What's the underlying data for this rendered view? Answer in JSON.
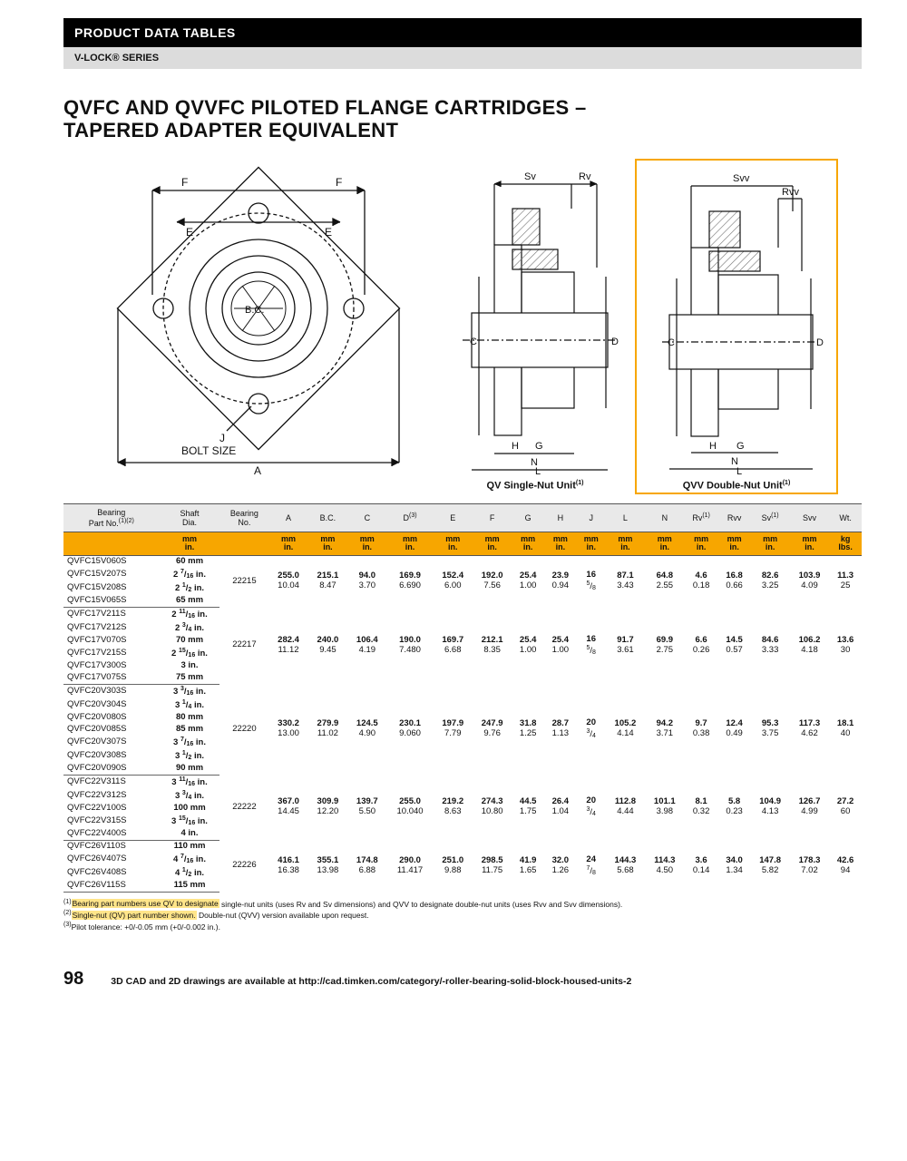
{
  "header": {
    "black": "PRODUCT DATA TABLES",
    "grey": "V-LOCK® SERIES"
  },
  "title_line1": "QVFC AND QVVFC PILOTED FLANGE CARTRIDGES –",
  "title_line2": "TAPERED ADAPTER EQUIVALENT",
  "diagrams": {
    "flange": {
      "labels": [
        "F",
        "F",
        "E",
        "E",
        "B.C.",
        "J",
        "BOLT SIZE",
        "A"
      ]
    },
    "qv": {
      "labels": [
        "Sv",
        "Rv",
        "C",
        "D",
        "H",
        "G",
        "N",
        "L"
      ],
      "caption": "QV Single-Nut Unit",
      "sup": "(1)"
    },
    "qvv": {
      "labels": [
        "Svv",
        "Rvv",
        "C",
        "D",
        "H",
        "G",
        "N",
        "L"
      ],
      "caption": "QVV Double-Nut Unit",
      "sup": "(1)"
    }
  },
  "columns": [
    "Bearing Part No.",
    "Shaft Dia.",
    "Bearing No.",
    "A",
    "B.C.",
    "C",
    "D",
    "E",
    "F",
    "G",
    "H",
    "J",
    "L",
    "N",
    "Rv",
    "Rvv",
    "Sv",
    "Svv",
    "Wt."
  ],
  "col_sup": {
    "0": "(1)(2)",
    "6": "(3)",
    "14": "(1)",
    "16": "(1)"
  },
  "unit_row": {
    "first_blank": 1,
    "mm": "mm",
    "in": "in.",
    "wt_kg": "kg",
    "wt_lb": "lbs."
  },
  "groups": [
    {
      "bearing_no": "22215",
      "parts": [
        {
          "pn": "QVFC15V060S",
          "shaft": "60 mm"
        },
        {
          "pn": "QVFC15V207S",
          "shaft": "2 7/16 in."
        },
        {
          "pn": "QVFC15V208S",
          "shaft": "2 1/2 in."
        },
        {
          "pn": "QVFC15V065S",
          "shaft": "65 mm"
        }
      ],
      "vals": {
        "A": [
          "255.0",
          "10.04"
        ],
        "BC": [
          "215.1",
          "8.47"
        ],
        "C": [
          "94.0",
          "3.70"
        ],
        "D": [
          "169.9",
          "6.690"
        ],
        "E": [
          "152.4",
          "6.00"
        ],
        "F": [
          "192.0",
          "7.56"
        ],
        "G": [
          "25.4",
          "1.00"
        ],
        "H": [
          "23.9",
          "0.94"
        ],
        "J": [
          "16",
          "5/8"
        ],
        "L": [
          "87.1",
          "3.43"
        ],
        "N": [
          "64.8",
          "2.55"
        ],
        "Rv": [
          "4.6",
          "0.18"
        ],
        "Rvv": [
          "16.8",
          "0.66"
        ],
        "Sv": [
          "82.6",
          "3.25"
        ],
        "Svv": [
          "103.9",
          "4.09"
        ],
        "Wt": [
          "11.3",
          "25"
        ]
      }
    },
    {
      "bearing_no": "22217",
      "parts": [
        {
          "pn": "QVFC17V211S",
          "shaft": "2 11/16 in."
        },
        {
          "pn": "QVFC17V212S",
          "shaft": "2 3/4 in."
        },
        {
          "pn": "QVFC17V070S",
          "shaft": "70 mm"
        },
        {
          "pn": "QVFC17V215S",
          "shaft": "2 15/16 in."
        },
        {
          "pn": "QVFC17V300S",
          "shaft": "3 in."
        },
        {
          "pn": "QVFC17V075S",
          "shaft": "75 mm"
        }
      ],
      "vals": {
        "A": [
          "282.4",
          "11.12"
        ],
        "BC": [
          "240.0",
          "9.45"
        ],
        "C": [
          "106.4",
          "4.19"
        ],
        "D": [
          "190.0",
          "7.480"
        ],
        "E": [
          "169.7",
          "6.68"
        ],
        "F": [
          "212.1",
          "8.35"
        ],
        "G": [
          "25.4",
          "1.00"
        ],
        "H": [
          "25.4",
          "1.00"
        ],
        "J": [
          "16",
          "5/8"
        ],
        "L": [
          "91.7",
          "3.61"
        ],
        "N": [
          "69.9",
          "2.75"
        ],
        "Rv": [
          "6.6",
          "0.26"
        ],
        "Rvv": [
          "14.5",
          "0.57"
        ],
        "Sv": [
          "84.6",
          "3.33"
        ],
        "Svv": [
          "106.2",
          "4.18"
        ],
        "Wt": [
          "13.6",
          "30"
        ]
      }
    },
    {
      "bearing_no": "22220",
      "parts": [
        {
          "pn": "QVFC20V303S",
          "shaft": "3 3/16 in."
        },
        {
          "pn": "QVFC20V304S",
          "shaft": "3 1/4 in."
        },
        {
          "pn": "QVFC20V080S",
          "shaft": "80 mm"
        },
        {
          "pn": "QVFC20V085S",
          "shaft": "85 mm"
        },
        {
          "pn": "QVFC20V307S",
          "shaft": "3 7/16 in."
        },
        {
          "pn": "QVFC20V308S",
          "shaft": "3 1/2 in."
        },
        {
          "pn": "QVFC20V090S",
          "shaft": "90 mm"
        }
      ],
      "vals": {
        "A": [
          "330.2",
          "13.00"
        ],
        "BC": [
          "279.9",
          "11.02"
        ],
        "C": [
          "124.5",
          "4.90"
        ],
        "D": [
          "230.1",
          "9.060"
        ],
        "E": [
          "197.9",
          "7.79"
        ],
        "F": [
          "247.9",
          "9.76"
        ],
        "G": [
          "31.8",
          "1.25"
        ],
        "H": [
          "28.7",
          "1.13"
        ],
        "J": [
          "20",
          "3/4"
        ],
        "L": [
          "105.2",
          "4.14"
        ],
        "N": [
          "94.2",
          "3.71"
        ],
        "Rv": [
          "9.7",
          "0.38"
        ],
        "Rvv": [
          "12.4",
          "0.49"
        ],
        "Sv": [
          "95.3",
          "3.75"
        ],
        "Svv": [
          "117.3",
          "4.62"
        ],
        "Wt": [
          "18.1",
          "40"
        ]
      }
    },
    {
      "bearing_no": "22222",
      "parts": [
        {
          "pn": "QVFC22V311S",
          "shaft": "3 11/16 in."
        },
        {
          "pn": "QVFC22V312S",
          "shaft": "3 3/4 in."
        },
        {
          "pn": "QVFC22V100S",
          "shaft": "100 mm"
        },
        {
          "pn": "QVFC22V315S",
          "shaft": "3 15/16 in."
        },
        {
          "pn": "QVFC22V400S",
          "shaft": "4 in."
        }
      ],
      "vals": {
        "A": [
          "367.0",
          "14.45"
        ],
        "BC": [
          "309.9",
          "12.20"
        ],
        "C": [
          "139.7",
          "5.50"
        ],
        "D": [
          "255.0",
          "10.040"
        ],
        "E": [
          "219.2",
          "8.63"
        ],
        "F": [
          "274.3",
          "10.80"
        ],
        "G": [
          "44.5",
          "1.75"
        ],
        "H": [
          "26.4",
          "1.04"
        ],
        "J": [
          "20",
          "3/4"
        ],
        "L": [
          "112.8",
          "4.44"
        ],
        "N": [
          "101.1",
          "3.98"
        ],
        "Rv": [
          "8.1",
          "0.32"
        ],
        "Rvv": [
          "5.8",
          "0.23"
        ],
        "Sv": [
          "104.9",
          "4.13"
        ],
        "Svv": [
          "126.7",
          "4.99"
        ],
        "Wt": [
          "27.2",
          "60"
        ]
      }
    },
    {
      "bearing_no": "22226",
      "parts": [
        {
          "pn": "QVFC26V110S",
          "shaft": "110 mm"
        },
        {
          "pn": "QVFC26V407S",
          "shaft": "4 7/16 in."
        },
        {
          "pn": "QVFC26V408S",
          "shaft": "4 1/2 in."
        },
        {
          "pn": "QVFC26V115S",
          "shaft": "115 mm"
        }
      ],
      "vals": {
        "A": [
          "416.1",
          "16.38"
        ],
        "BC": [
          "355.1",
          "13.98"
        ],
        "C": [
          "174.8",
          "6.88"
        ],
        "D": [
          "290.0",
          "11.417"
        ],
        "E": [
          "251.0",
          "9.88"
        ],
        "F": [
          "298.5",
          "11.75"
        ],
        "G": [
          "41.9",
          "1.65"
        ],
        "H": [
          "32.0",
          "1.26"
        ],
        "J": [
          "24",
          "7/8"
        ],
        "L": [
          "144.3",
          "5.68"
        ],
        "N": [
          "114.3",
          "4.50"
        ],
        "Rv": [
          "3.6",
          "0.14"
        ],
        "Rvv": [
          "34.0",
          "1.34"
        ],
        "Sv": [
          "147.8",
          "5.82"
        ],
        "Svv": [
          "178.3",
          "7.02"
        ],
        "Wt": [
          "42.6",
          "94"
        ]
      }
    }
  ],
  "footnotes": [
    "Bearing part numbers use QV to designate single-nut units (uses Rv and Sv dimensions) and QVV to designate double-nut units (uses Rvv and Svv dimensions).",
    "Single-nut (QV) part number shown. Double-nut (QVV) version available upon request.",
    "Pilot tolerance: +0/-0.05 mm (+0/-0.002 in.)."
  ],
  "footnotes_hl": [
    true,
    true,
    false
  ],
  "page_number": "98",
  "footer_text": "3D CAD and 2D drawings are available at http://cad.timken.com/category/-roller-bearing-solid-block-housed-units-2",
  "style": {
    "accent": "#f7a600",
    "grid": "#666",
    "header_grey": "#dcdcdc",
    "hatch": "#9aa0a6"
  }
}
